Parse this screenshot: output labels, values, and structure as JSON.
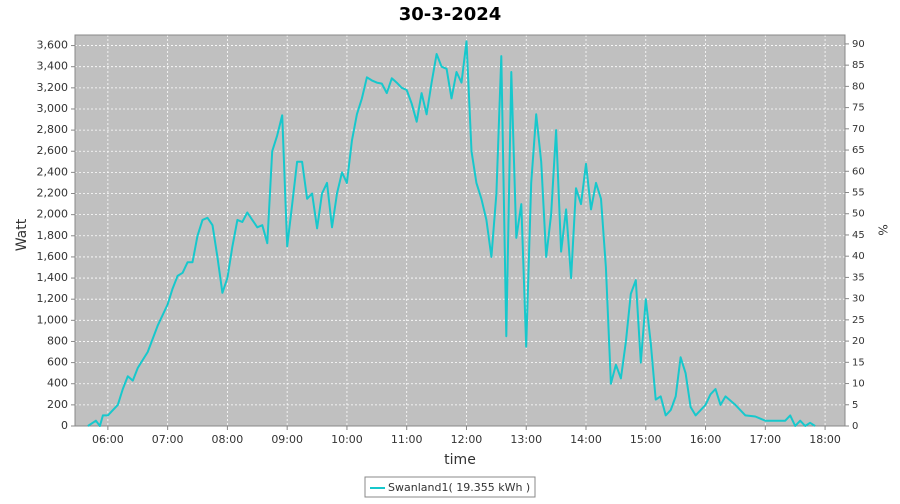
{
  "chart_data": {
    "type": "line",
    "title": "30-3-2024",
    "x_label": "time",
    "y_label": "Watt",
    "y2_label": "%",
    "x": [
      "05:40",
      "05:48",
      "05:52",
      "05:55",
      "06:00",
      "06:05",
      "06:10",
      "06:15",
      "06:20",
      "06:25",
      "06:30",
      "06:40",
      "06:50",
      "07:00",
      "07:05",
      "07:10",
      "07:15",
      "07:20",
      "07:25",
      "07:30",
      "07:35",
      "07:40",
      "07:45",
      "07:50",
      "07:55",
      "08:00",
      "08:05",
      "08:10",
      "08:15",
      "08:20",
      "08:25",
      "08:30",
      "08:35",
      "08:40",
      "08:45",
      "08:50",
      "08:55",
      "09:00",
      "09:05",
      "09:10",
      "09:15",
      "09:20",
      "09:25",
      "09:30",
      "09:35",
      "09:40",
      "09:45",
      "09:50",
      "09:55",
      "10:00",
      "10:05",
      "10:10",
      "10:15",
      "10:20",
      "10:25",
      "10:30",
      "10:35",
      "10:40",
      "10:45",
      "10:50",
      "10:55",
      "11:00",
      "11:05",
      "11:10",
      "11:15",
      "11:20",
      "11:25",
      "11:30",
      "11:35",
      "11:40",
      "11:45",
      "11:50",
      "11:55",
      "12:00",
      "12:05",
      "12:10",
      "12:15",
      "12:20",
      "12:25",
      "12:30",
      "12:35",
      "12:40",
      "12:45",
      "12:50",
      "12:55",
      "13:00",
      "13:05",
      "13:10",
      "13:15",
      "13:20",
      "13:25",
      "13:30",
      "13:35",
      "13:40",
      "13:45",
      "13:50",
      "13:55",
      "14:00",
      "14:05",
      "14:10",
      "14:15",
      "14:20",
      "14:25",
      "14:30",
      "14:35",
      "14:40",
      "14:45",
      "14:50",
      "14:55",
      "15:00",
      "15:05",
      "15:10",
      "15:15",
      "15:20",
      "15:25",
      "15:30",
      "15:35",
      "15:40",
      "15:45",
      "15:50",
      "16:00",
      "16:05",
      "16:10",
      "16:15",
      "16:20",
      "16:30",
      "16:40",
      "16:50",
      "17:00",
      "17:10",
      "17:20",
      "17:25",
      "17:30",
      "17:35",
      "17:40",
      "17:45",
      "17:50"
    ],
    "series": [
      {
        "name": "Swanland1( 19.355 kWh )",
        "color": "#17c8cc",
        "values": [
          0,
          50,
          0,
          100,
          100,
          150,
          200,
          350,
          470,
          430,
          550,
          700,
          950,
          1150,
          1300,
          1420,
          1450,
          1550,
          1550,
          1800,
          1950,
          1970,
          1900,
          1600,
          1260,
          1400,
          1700,
          1950,
          1930,
          2020,
          1950,
          1880,
          1900,
          1730,
          2600,
          2750,
          2940,
          1700,
          2100,
          2500,
          2500,
          2150,
          2200,
          1870,
          2200,
          2300,
          1880,
          2200,
          2400,
          2300,
          2700,
          2950,
          3100,
          3300,
          3270,
          3250,
          3240,
          3150,
          3290,
          3250,
          3200,
          3180,
          3050,
          2880,
          3150,
          2950,
          3250,
          3520,
          3400,
          3380,
          3100,
          3350,
          3250,
          3640,
          2600,
          2300,
          2150,
          1950,
          1600,
          2200,
          3500,
          850,
          3350,
          1780,
          2100,
          750,
          2300,
          2950,
          2500,
          1600,
          2000,
          2800,
          1650,
          2050,
          1400,
          2250,
          2100,
          2480,
          2050,
          2300,
          2150,
          1500,
          400,
          580,
          450,
          800,
          1250,
          1380,
          600,
          1200,
          780,
          250,
          280,
          100,
          150,
          280,
          650,
          500,
          180,
          100,
          200,
          300,
          350,
          200,
          280,
          200,
          100,
          90,
          50,
          50,
          50,
          100,
          0,
          50,
          0,
          30,
          0
        ]
      }
    ],
    "xlim": [
      "05:27",
      "18:20"
    ],
    "xticks": [
      "06:00",
      "07:00",
      "08:00",
      "09:00",
      "10:00",
      "11:00",
      "12:00",
      "13:00",
      "14:00",
      "15:00",
      "16:00",
      "17:00",
      "18:00"
    ],
    "ylim": [
      0,
      3700
    ],
    "yticks": [
      0,
      200,
      400,
      600,
      800,
      {
        "value": 1000,
        "label": "1,000"
      },
      {
        "value": 1200,
        "label": "1,200"
      },
      {
        "value": 1400,
        "label": "1,400"
      },
      {
        "value": 1600,
        "label": "1,600"
      },
      {
        "value": 1800,
        "label": "1,800"
      },
      {
        "value": 2000,
        "label": "2,000"
      },
      {
        "value": 2200,
        "label": "2,200"
      },
      {
        "value": 2400,
        "label": "2,400"
      },
      {
        "value": 2600,
        "label": "2,600"
      },
      {
        "value": 2800,
        "label": "2,800"
      },
      {
        "value": 3000,
        "label": "3,000"
      },
      {
        "value": 3200,
        "label": "3,200"
      },
      {
        "value": 3400,
        "label": "3,400"
      },
      {
        "value": 3600,
        "label": "3,600"
      }
    ],
    "y2lim": [
      0,
      92.1
    ],
    "y2ticks": [
      0,
      5,
      10,
      15,
      20,
      25,
      30,
      35,
      40,
      45,
      50,
      55,
      60,
      65,
      70,
      75,
      80,
      85,
      90
    ],
    "grid": true
  }
}
